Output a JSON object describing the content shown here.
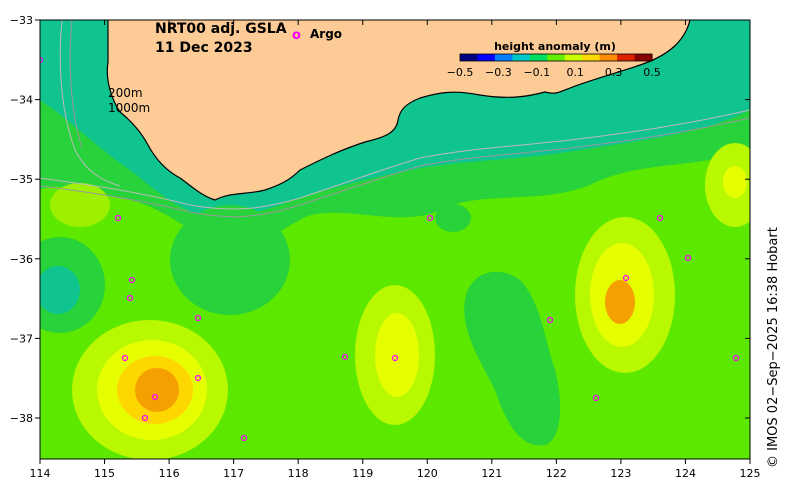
{
  "title": {
    "line1": "NRT00 adj. GSLA",
    "line2": "11 Dec 2023"
  },
  "legend": {
    "marker_symbol": "o",
    "marker_label": "Argo",
    "marker_color": "#ff00ff"
  },
  "isobaths": {
    "label1": "200m",
    "label2": "1000m"
  },
  "colorbar": {
    "title": "height anomaly (m)",
    "ticks": [
      "−0.5",
      "−0.3",
      "−0.1",
      "0.1",
      "0.3",
      "0.5"
    ],
    "colors": [
      "#000080",
      "#0000ff",
      "#007fff",
      "#00c8c8",
      "#00e060",
      "#66ee00",
      "#ccff00",
      "#ffd700",
      "#ff8c00",
      "#dd2200",
      "#880000"
    ]
  },
  "axes": {
    "x_ticks": [
      "114",
      "115",
      "116",
      "117",
      "118",
      "119",
      "120",
      "121",
      "122",
      "123",
      "124",
      "125"
    ],
    "y_ticks": [
      "−33",
      "−34",
      "−35",
      "−36",
      "−37",
      "−38"
    ]
  },
  "credit": "© IMOS 02−Sep−2025 16:38 Hobart",
  "colors": {
    "land": "#fdcb95",
    "field_base": "#66ee00"
  }
}
